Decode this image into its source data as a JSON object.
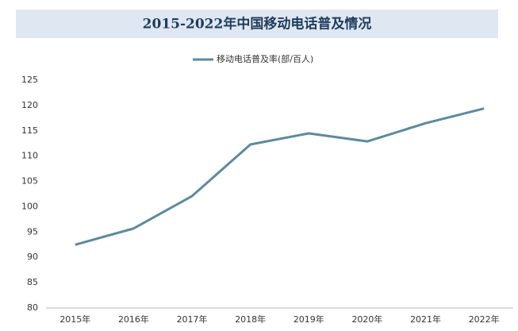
{
  "chart_data": {
    "type": "line",
    "title": "2015-2022年中国移动电话普及情况",
    "categories": [
      "2015年",
      "2016年",
      "2017年",
      "2018年",
      "2019年",
      "2020年",
      "2021年",
      "2022年"
    ],
    "series": [
      {
        "name": "移动电话普及率(部/百人)",
        "color": "#5b8aa0",
        "values": [
          92.5,
          95.7,
          102.1,
          112.3,
          114.5,
          112.9,
          116.5,
          119.4
        ]
      }
    ],
    "ylim": [
      80,
      125
    ],
    "yticks": [
      80,
      85,
      90,
      95,
      100,
      105,
      110,
      115,
      120,
      125
    ],
    "grid": false,
    "legend": "top"
  }
}
